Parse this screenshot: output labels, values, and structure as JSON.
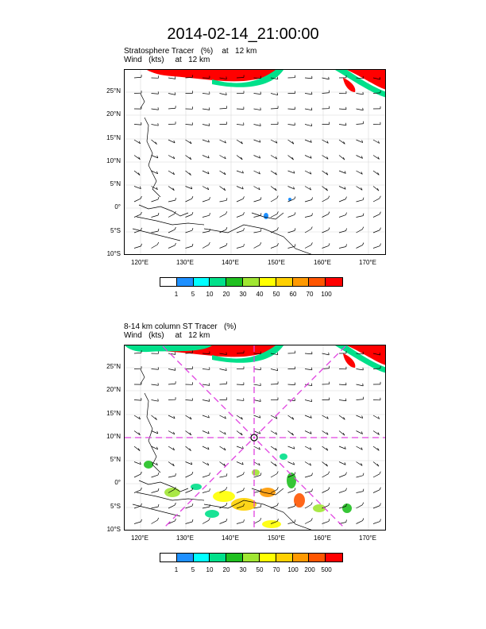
{
  "main_title": "2014-02-14_21:00:00",
  "panels": [
    {
      "title_line1": "Stratosphere Tracer   (%)    at   12 km",
      "title_line2": "Wind   (kts)     at   12 km",
      "lat_labels": [
        "25°N",
        "20°N",
        "15°N",
        "10°N",
        "5°N",
        "0°",
        "5°S",
        "10°S"
      ],
      "lon_labels": [
        "120°E",
        "130°E",
        "140°E",
        "150°E",
        "160°E",
        "170°E"
      ],
      "colorbar": {
        "labels": [
          "1",
          "5",
          "10",
          "20",
          "30",
          "40",
          "50",
          "60",
          "70",
          "100"
        ],
        "colors": [
          "#ffffff",
          "#1e90ff",
          "#00ffff",
          "#00e08a",
          "#20c020",
          "#a0e632",
          "#ffff00",
          "#ffd000",
          "#ff9900",
          "#ff5500",
          "#ff0000"
        ]
      },
      "has_cross_section": false
    },
    {
      "title_line1": "8-14 km column ST Tracer   (%)",
      "title_line2": "Wind   (kts)     at   12 km",
      "lat_labels": [
        "25°N",
        "20°N",
        "15°N",
        "10°N",
        "5°N",
        "0°",
        "5°S",
        "10°S"
      ],
      "lon_labels": [
        "120°E",
        "130°E",
        "140°E",
        "150°E",
        "160°E",
        "170°E"
      ],
      "colorbar": {
        "labels": [
          "1",
          "5",
          "10",
          "20",
          "30",
          "50",
          "70",
          "100",
          "200",
          "500"
        ],
        "colors": [
          "#ffffff",
          "#1e90ff",
          "#00ffff",
          "#00e08a",
          "#20c020",
          "#a0e632",
          "#ffff00",
          "#ffd000",
          "#ff9900",
          "#ff5500",
          "#ff0000"
        ]
      },
      "has_cross_section": true,
      "cross_section_color": "#e040e0"
    }
  ]
}
